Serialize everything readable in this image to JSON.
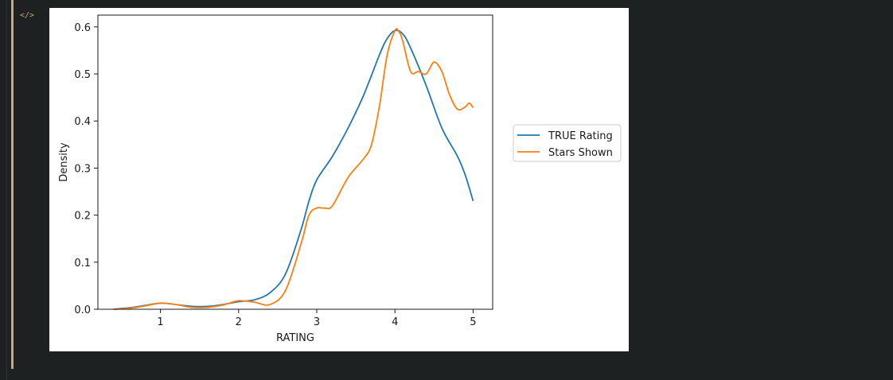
{
  "cell": {
    "icon": "code-icon"
  },
  "chart_data": {
    "type": "line",
    "title": "",
    "xlabel": "RATING",
    "ylabel": "Density",
    "xlim": [
      0.2,
      5.25
    ],
    "ylim": [
      0,
      0.625
    ],
    "xticks": [
      1,
      2,
      3,
      4,
      5
    ],
    "xtick_labels": [
      "1",
      "2",
      "3",
      "4",
      "5"
    ],
    "yticks": [
      0.0,
      0.1,
      0.2,
      0.3,
      0.4,
      0.5,
      0.6
    ],
    "ytick_labels": [
      "0.0",
      "0.1",
      "0.2",
      "0.3",
      "0.4",
      "0.5",
      "0.6"
    ],
    "grid": false,
    "legend_position": "center-right outside",
    "series": [
      {
        "name": "TRUE Rating",
        "color": "#1f77b4",
        "x": [
          0.4,
          0.6,
          0.8,
          1.0,
          1.2,
          1.4,
          1.6,
          1.8,
          2.0,
          2.2,
          2.4,
          2.6,
          2.8,
          2.9,
          3.0,
          3.2,
          3.4,
          3.6,
          3.8,
          3.9,
          4.0,
          4.1,
          4.2,
          4.4,
          4.6,
          4.8,
          4.9,
          5.0
        ],
        "y": [
          0.0,
          0.003,
          0.008,
          0.013,
          0.01,
          0.006,
          0.006,
          0.01,
          0.016,
          0.02,
          0.035,
          0.075,
          0.17,
          0.23,
          0.275,
          0.325,
          0.385,
          0.455,
          0.54,
          0.575,
          0.592,
          0.585,
          0.555,
          0.475,
          0.385,
          0.325,
          0.285,
          0.23
        ]
      },
      {
        "name": "Stars Shown",
        "color": "#ff7f0e",
        "x": [
          0.4,
          0.6,
          0.8,
          1.0,
          1.2,
          1.4,
          1.6,
          1.8,
          2.0,
          2.2,
          2.4,
          2.6,
          2.8,
          2.9,
          3.0,
          3.1,
          3.2,
          3.4,
          3.6,
          3.7,
          3.8,
          3.9,
          4.0,
          4.05,
          4.1,
          4.2,
          4.3,
          4.4,
          4.5,
          4.6,
          4.7,
          4.8,
          4.9,
          4.95,
          5.0
        ],
        "y": [
          0.0,
          0.002,
          0.007,
          0.013,
          0.01,
          0.004,
          0.004,
          0.009,
          0.018,
          0.015,
          0.01,
          0.04,
          0.14,
          0.2,
          0.215,
          0.215,
          0.22,
          0.28,
          0.32,
          0.35,
          0.43,
          0.54,
          0.592,
          0.59,
          0.57,
          0.505,
          0.505,
          0.5,
          0.525,
          0.505,
          0.455,
          0.425,
          0.43,
          0.438,
          0.428
        ]
      }
    ]
  }
}
